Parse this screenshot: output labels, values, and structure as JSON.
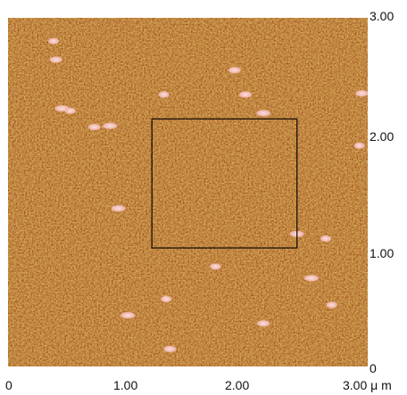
{
  "image": {
    "kind": "AFM height topography",
    "colormap": [
      "#7a3410",
      "#9a4a14",
      "#b8661e",
      "#d2902f",
      "#e6c06a",
      "#f7e1a6"
    ],
    "particle_color": "#f2b9b3",
    "roi_color": "#1a0f08"
  },
  "axes": {
    "x_ticks": [
      {
        "value": 0,
        "label": "0"
      },
      {
        "value": 1,
        "label": "1.00"
      },
      {
        "value": 2,
        "label": "2.00"
      },
      {
        "value": 3,
        "label": "3.00 μ m"
      }
    ],
    "y_ticks": [
      {
        "value": 0,
        "label": "0"
      },
      {
        "value": 1,
        "label": "1.00"
      },
      {
        "value": 2,
        "label": "2.00"
      },
      {
        "value": 3,
        "label": "3.00"
      }
    ],
    "range": [
      0,
      3
    ],
    "unit": "μm"
  },
  "roi_um": {
    "x0": 1.2,
    "y0": 1.02,
    "x1": 2.41,
    "y1": 2.13
  },
  "particles_um": [
    [
      0.38,
      2.8
    ],
    [
      0.4,
      2.64
    ],
    [
      0.45,
      2.22
    ],
    [
      0.52,
      2.2
    ],
    [
      0.72,
      2.06
    ],
    [
      0.85,
      2.07
    ],
    [
      1.3,
      2.34
    ],
    [
      1.98,
      2.34
    ],
    [
      2.13,
      2.18
    ],
    [
      2.93,
      1.9
    ],
    [
      2.95,
      2.35
    ],
    [
      0.92,
      1.36
    ],
    [
      1.32,
      0.58
    ],
    [
      1.35,
      0.15
    ],
    [
      1.0,
      0.44
    ],
    [
      1.73,
      0.86
    ],
    [
      2.13,
      0.37
    ],
    [
      2.53,
      0.76
    ],
    [
      2.7,
      0.53
    ],
    [
      1.89,
      2.55
    ],
    [
      2.41,
      1.14
    ],
    [
      2.65,
      1.1
    ]
  ]
}
